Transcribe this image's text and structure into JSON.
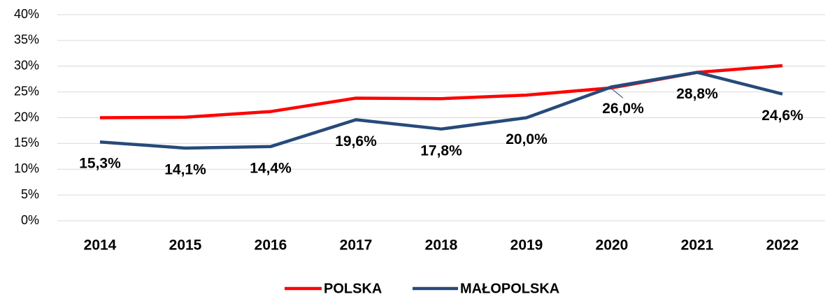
{
  "chart_data": {
    "type": "line",
    "categories": [
      "2014",
      "2015",
      "2016",
      "2017",
      "2018",
      "2019",
      "2020",
      "2021",
      "2022"
    ],
    "series": [
      {
        "name": "POLSKA",
        "color": "#ff0000",
        "values": [
          20.0,
          20.1,
          21.2,
          23.8,
          23.7,
          24.4,
          25.8,
          28.8,
          30.1
        ]
      },
      {
        "name": "MAŁOPOLSKA",
        "color": "#264a7a",
        "values": [
          15.3,
          14.1,
          14.4,
          19.6,
          17.8,
          20.0,
          26.0,
          28.8,
          24.6
        ],
        "value_labels": [
          "15,3%",
          "14,1%",
          "14,4%",
          "19,6%",
          "17,8%",
          "20,0%",
          "26,0%",
          "28,8%",
          "24,6%"
        ]
      }
    ],
    "ylim": [
      0,
      40
    ],
    "yticks": [
      {
        "value": 0,
        "label": "0%"
      },
      {
        "value": 5,
        "label": "5%"
      },
      {
        "value": 10,
        "label": "10%"
      },
      {
        "value": 15,
        "label": "15%"
      },
      {
        "value": 20,
        "label": "20%"
      },
      {
        "value": 25,
        "label": "25%"
      },
      {
        "value": 30,
        "label": "30%"
      },
      {
        "value": 35,
        "label": "35%"
      },
      {
        "value": 40,
        "label": "40%"
      }
    ],
    "grid": true,
    "legend": "bottom"
  }
}
